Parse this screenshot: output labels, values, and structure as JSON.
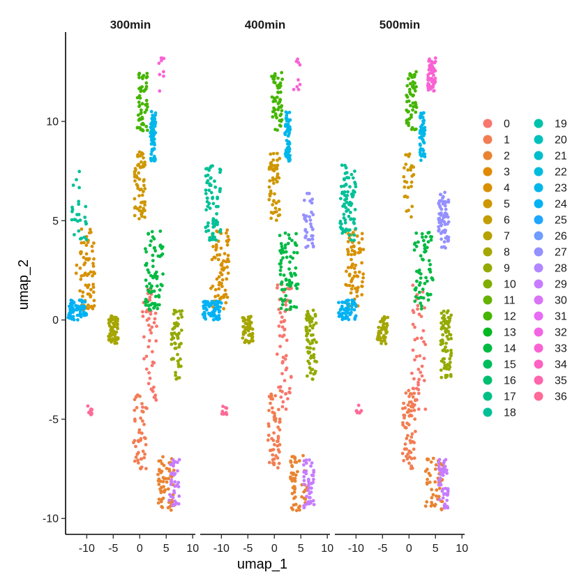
{
  "chart_data": {
    "type": "scatter",
    "facets": [
      "300min",
      "400min",
      "500min"
    ],
    "xlabel": "umap_1",
    "ylabel": "umap_2",
    "xlim": [
      -14,
      10.5
    ],
    "ylim": [
      -10.8,
      14.5
    ],
    "xticks": [
      -10,
      -5,
      0,
      5,
      10
    ],
    "xtick_labels": [
      "-10",
      "-5",
      "0",
      "5",
      "10"
    ],
    "yticks": [
      -10,
      -5,
      0,
      5,
      10
    ],
    "ytick_labels": [
      "-10",
      "-5",
      "0",
      "5",
      "10"
    ],
    "legend": {
      "position": "right",
      "columns": 2,
      "labels": [
        "0",
        "1",
        "2",
        "3",
        "4",
        "5",
        "6",
        "7",
        "8",
        "9",
        "10",
        "11",
        "12",
        "13",
        "14",
        "15",
        "16",
        "17",
        "18",
        "19",
        "20",
        "21",
        "22",
        "23",
        "24",
        "25",
        "26",
        "27",
        "28",
        "29",
        "30",
        "31",
        "32",
        "33",
        "34",
        "35",
        "36"
      ],
      "colors": [
        "#F8766D",
        "#F27D52",
        "#EA8331",
        "#E18A00",
        "#D89000",
        "#CE9700",
        "#C29D00",
        "#B5A100",
        "#A5A600",
        "#94AA00",
        "#80AE00",
        "#67B200",
        "#45B500",
        "#00B81F",
        "#00BA43",
        "#00BC5B",
        "#00BE70",
        "#00BF84",
        "#00C097",
        "#00C1AA",
        "#00C0BB",
        "#00BECD",
        "#00BBDC",
        "#00B7EA",
        "#00B2F4",
        "#1FA6FF",
        "#6E9CFF",
        "#9590FF",
        "#B186FF",
        "#C77CFF",
        "#DA73F6",
        "#E76BF3",
        "#F365E4",
        "#FA62D4",
        "#FE61C2",
        "#FF64AE",
        "#FF6A98"
      ]
    },
    "clusters": [
      {
        "id": "0",
        "x_range": [
          0.5,
          3.2
        ],
        "y_range": [
          -4.5,
          1.8
        ],
        "share_by_facet": [
          0.55,
          0.6,
          0.5
        ]
      },
      {
        "id": "1",
        "x_range": [
          -1.2,
          1.2
        ],
        "y_range": [
          -7.5,
          -3.5
        ],
        "share_by_facet": [
          0.5,
          0.6,
          0.7
        ]
      },
      {
        "id": "2",
        "x_range": [
          3.0,
          6.5
        ],
        "y_range": [
          -9.6,
          -6.8
        ],
        "share_by_facet": [
          0.7,
          0.6,
          0.5
        ]
      },
      {
        "id": "4",
        "x_range": [
          -12.0,
          -8.5
        ],
        "y_range": [
          0.5,
          4.6
        ],
        "share_by_facet": [
          0.8,
          0.8,
          0.8
        ]
      },
      {
        "id": "5",
        "x_range": [
          -1.0,
          1.0
        ],
        "y_range": [
          5.0,
          8.5
        ],
        "share_by_facet": [
          0.7,
          0.6,
          0.3
        ]
      },
      {
        "id": "8",
        "x_range": [
          -6.0,
          -4.0
        ],
        "y_range": [
          -1.2,
          0.2
        ],
        "share_by_facet": [
          0.7,
          0.6,
          0.5
        ]
      },
      {
        "id": "9",
        "x_range": [
          6.0,
          8.0
        ],
        "y_range": [
          -3.0,
          0.5
        ],
        "share_by_facet": [
          0.6,
          0.7,
          0.8
        ]
      },
      {
        "id": "12",
        "x_range": [
          -0.5,
          1.5
        ],
        "y_range": [
          9.5,
          12.5
        ],
        "share_by_facet": [
          0.6,
          0.6,
          0.6
        ]
      },
      {
        "id": "14",
        "x_range": [
          1.0,
          4.5
        ],
        "y_range": [
          0.5,
          4.5
        ],
        "share_by_facet": [
          0.8,
          0.8,
          0.7
        ]
      },
      {
        "id": "18",
        "x_range": [
          -13.0,
          -10.0
        ],
        "y_range": [
          4.0,
          7.8
        ],
        "share_by_facet": [
          0.3,
          0.8,
          0.9
        ]
      },
      {
        "id": "23",
        "x_range": [
          2.0,
          3.0
        ],
        "y_range": [
          8.0,
          10.5
        ],
        "share_by_facet": [
          0.8,
          0.7,
          0.6
        ]
      },
      {
        "id": "24",
        "x_range": [
          -13.5,
          -10.0
        ],
        "y_range": [
          0.0,
          1.0
        ],
        "share_by_facet": [
          0.8,
          0.8,
          0.7
        ]
      },
      {
        "id": "27",
        "x_range": [
          5.5,
          7.5
        ],
        "y_range": [
          3.5,
          6.5
        ],
        "share_by_facet": [
          0.0,
          0.4,
          0.8
        ]
      },
      {
        "id": "29",
        "x_range": [
          5.5,
          7.5
        ],
        "y_range": [
          -9.5,
          -7.0
        ],
        "share_by_facet": [
          0.4,
          0.5,
          0.6
        ]
      },
      {
        "id": "33",
        "x_range": [
          3.5,
          5.0
        ],
        "y_range": [
          11.5,
          13.2
        ],
        "share_by_facet": [
          0.1,
          0.1,
          0.6
        ]
      },
      {
        "id": "36",
        "x_range": [
          -10.0,
          -9.0
        ],
        "y_range": [
          -4.8,
          -4.3
        ],
        "share_by_facet": [
          0.1,
          0.1,
          0.1
        ]
      }
    ]
  }
}
